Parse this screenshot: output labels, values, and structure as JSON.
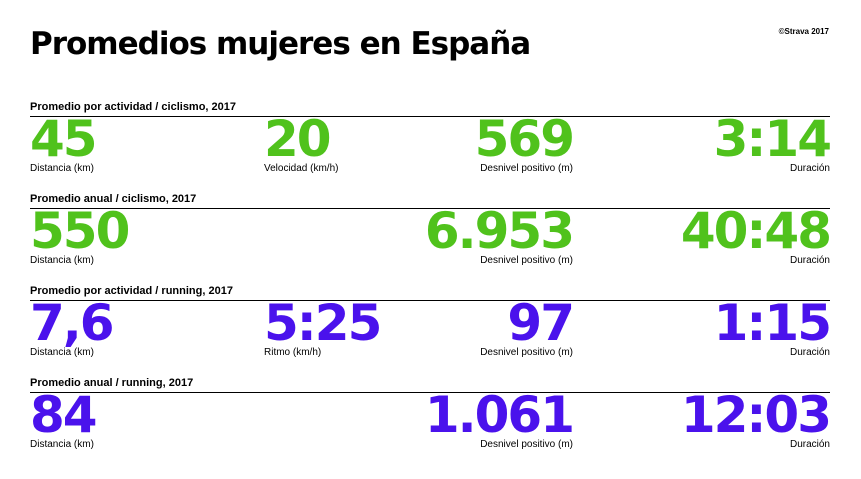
{
  "title": "Promedios mujeres en España",
  "copyright": "©Strava 2017",
  "colors": {
    "cycling": "#50c21c",
    "running": "#4a12ec"
  },
  "sections": [
    {
      "header": "Promedio por actividad / ciclismo, 2017",
      "stats": [
        {
          "value": "45",
          "label": "Distancia (km)"
        },
        {
          "value": "20",
          "label": "Velocidad (km/h)"
        },
        {
          "value": "569",
          "label": "Desnivel positivo (m)"
        },
        {
          "value": "3:14",
          "label": "Duración"
        }
      ]
    },
    {
      "header": "Promedio anual / ciclismo, 2017",
      "stats": [
        {
          "value": "550",
          "label": "Distancia (km)"
        },
        {
          "value": "6.953",
          "label": "Desnivel positivo (m)"
        },
        {
          "value": "40:48",
          "label": "Duración"
        }
      ]
    },
    {
      "header": "Promedio por actividad / running, 2017",
      "stats": [
        {
          "value": "7,6",
          "label": "Distancia (km)"
        },
        {
          "value": "5:25",
          "label": "Ritmo (km/h)"
        },
        {
          "value": "97",
          "label": "Desnivel positivo (m)"
        },
        {
          "value": "1:15",
          "label": "Duración"
        }
      ]
    },
    {
      "header": "Promedio anual / running, 2017",
      "stats": [
        {
          "value": "84",
          "label": "Distancia (km)"
        },
        {
          "value": "1.061",
          "label": "Desnivel positivo (m)"
        },
        {
          "value": "12:03",
          "label": "Duración"
        }
      ]
    }
  ]
}
